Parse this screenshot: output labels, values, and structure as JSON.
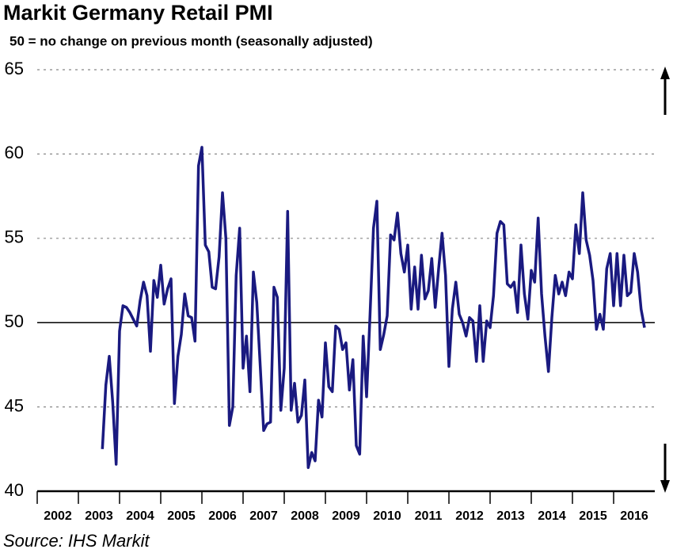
{
  "chart_data": {
    "type": "line",
    "title": "Markit Germany Retail PMI",
    "subtitle": "50 = no change on previous month (seasonally adjusted)",
    "source": "Source: IHS Markit",
    "reference_line": 50,
    "xlim": [
      2002,
      2017
    ],
    "xticks": [
      2002,
      2003,
      2004,
      2005,
      2006,
      2007,
      2008,
      2009,
      2010,
      2011,
      2012,
      2013,
      2014,
      2015,
      2016
    ],
    "ylim": [
      40,
      65
    ],
    "yticks": [
      40,
      45,
      50,
      55,
      60,
      65
    ],
    "grid": true,
    "series": [
      {
        "name": "Markit Germany Retail PMI",
        "color": "#1a1a80",
        "x": [
          2003.583,
          2003.667,
          2003.75,
          2003.833,
          2003.917,
          2004,
          2004.083,
          2004.167,
          2004.25,
          2004.333,
          2004.417,
          2004.5,
          2004.583,
          2004.667,
          2004.75,
          2004.833,
          2004.917,
          2005,
          2005.083,
          2005.167,
          2005.25,
          2005.333,
          2005.417,
          2005.5,
          2005.583,
          2005.667,
          2005.75,
          2005.833,
          2005.917,
          2006,
          2006.083,
          2006.167,
          2006.25,
          2006.333,
          2006.417,
          2006.5,
          2006.583,
          2006.667,
          2006.75,
          2006.833,
          2006.917,
          2007,
          2007.083,
          2007.167,
          2007.25,
          2007.333,
          2007.417,
          2007.5,
          2007.583,
          2007.667,
          2007.75,
          2007.833,
          2007.917,
          2008,
          2008.083,
          2008.167,
          2008.25,
          2008.333,
          2008.417,
          2008.5,
          2008.583,
          2008.667,
          2008.75,
          2008.833,
          2008.917,
          2009,
          2009.083,
          2009.167,
          2009.25,
          2009.333,
          2009.417,
          2009.5,
          2009.583,
          2009.667,
          2009.75,
          2009.833,
          2009.917,
          2010,
          2010.083,
          2010.167,
          2010.25,
          2010.333,
          2010.417,
          2010.5,
          2010.583,
          2010.667,
          2010.75,
          2010.833,
          2010.917,
          2011,
          2011.083,
          2011.167,
          2011.25,
          2011.333,
          2011.417,
          2011.5,
          2011.583,
          2011.667,
          2011.75,
          2011.833,
          2011.917,
          2012,
          2012.083,
          2012.167,
          2012.25,
          2012.333,
          2012.417,
          2012.5,
          2012.583,
          2012.667,
          2012.75,
          2012.833,
          2012.917,
          2013,
          2013.083,
          2013.167,
          2013.25,
          2013.333,
          2013.417,
          2013.5,
          2013.583,
          2013.667,
          2013.75,
          2013.833,
          2013.917,
          2014,
          2014.083,
          2014.167,
          2014.25,
          2014.333,
          2014.417,
          2014.5,
          2014.583,
          2014.667,
          2014.75,
          2014.833,
          2014.917,
          2015,
          2015.083,
          2015.167,
          2015.25,
          2015.333,
          2015.417,
          2015.5,
          2015.583,
          2015.667,
          2015.75,
          2015.833,
          2015.917,
          2016,
          2016.083,
          2016.167,
          2016.25,
          2016.333,
          2016.417,
          2016.5,
          2016.583,
          2016.667,
          2016.75
        ],
        "values": [
          42.5,
          46.3,
          48.0,
          45.3,
          41.6,
          49.5,
          51.0,
          50.9,
          50.6,
          50.2,
          49.8,
          51.3,
          52.4,
          51.6,
          48.3,
          52.5,
          51.5,
          53.4,
          51.1,
          52.0,
          52.6,
          45.2,
          48.0,
          49.3,
          51.7,
          50.4,
          50.3,
          48.9,
          59.3,
          60.4,
          54.6,
          54.2,
          52.1,
          52.0,
          53.9,
          57.7,
          55.0,
          43.9,
          45.0,
          52.8,
          55.6,
          47.3,
          49.2,
          45.9,
          53.0,
          51.2,
          47.4,
          43.6,
          44.0,
          44.1,
          52.1,
          51.5,
          44.8,
          47.3,
          56.6,
          44.8,
          46.4,
          44.1,
          44.5,
          46.6,
          41.4,
          42.3,
          41.8,
          45.4,
          44.4,
          48.8,
          46.2,
          45.9,
          49.8,
          49.6,
          48.4,
          48.8,
          46.0,
          47.8,
          42.7,
          42.2,
          49.2,
          45.6,
          50.4,
          55.6,
          57.2,
          48.4,
          49.3,
          50.4,
          55.2,
          54.9,
          56.5,
          54.1,
          53.0,
          54.6,
          50.8,
          53.3,
          50.8,
          54.0,
          51.4,
          51.9,
          53.8,
          50.9,
          53.2,
          55.3,
          52.8,
          47.4,
          50.8,
          52.4,
          50.5,
          50.0,
          49.2,
          50.3,
          50.1,
          47.7,
          51.0,
          47.7,
          50.1,
          49.7,
          51.6,
          55.3,
          56.0,
          55.8,
          52.3,
          52.1,
          52.4,
          50.6,
          54.6,
          51.7,
          50.2,
          53.1,
          52.4,
          56.2,
          51.7,
          49.2,
          47.1,
          50.3,
          52.8,
          51.7,
          52.4,
          51.6,
          53.0,
          52.6,
          55.8,
          54.1,
          57.7,
          54.9,
          54.0,
          52.5,
          49.6,
          50.5,
          49.6,
          53.2,
          54.1,
          51.0,
          54.1,
          51.0,
          54.0,
          51.6,
          51.8,
          54.1,
          53.0,
          50.8,
          49.7
        ]
      }
    ]
  }
}
